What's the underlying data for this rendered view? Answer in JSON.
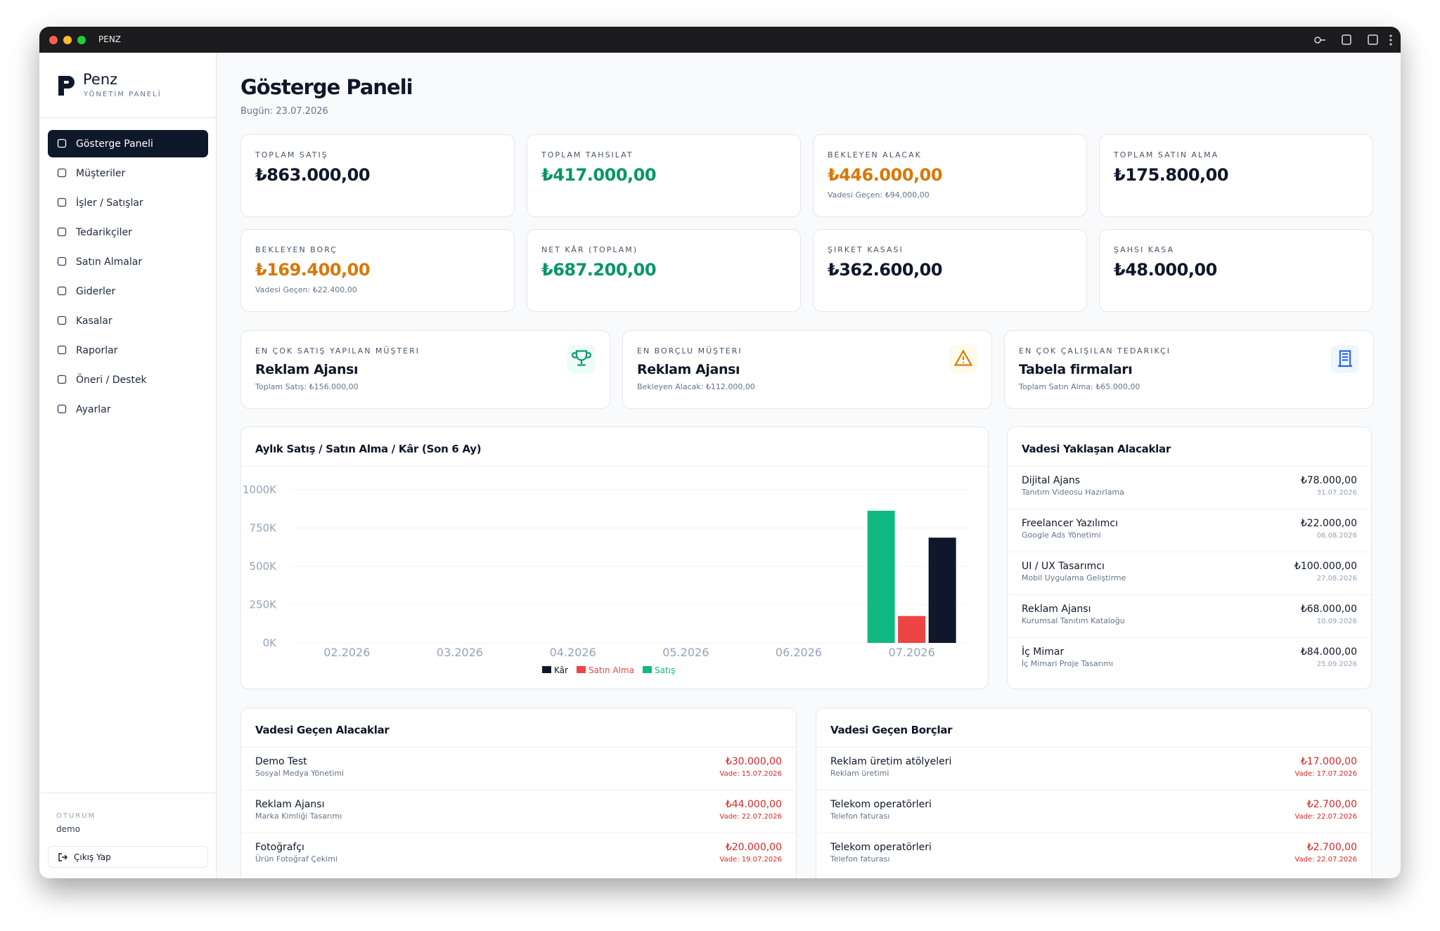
{
  "window": {
    "title": "PENZ"
  },
  "sidebar": {
    "brand": "Penz",
    "brand_sub": "YÖNETİM PANELİ",
    "nav": [
      "Gösterge Paneli",
      "Müşteriler",
      "İşler / Satışlar",
      "Tedarikçiler",
      "Satın Almalar",
      "Giderler",
      "Kasalar",
      "Raporlar",
      "Öneri / Destek",
      "Ayarlar"
    ],
    "session_label": "OTURUM",
    "user": "demo",
    "logout": "Çıkış Yap"
  },
  "header": {
    "title": "Gösterge Paneli",
    "date": "Bugün: 23.07.2026"
  },
  "stats": [
    {
      "label": "TOPLAM SATIŞ",
      "value": "₺863.000,00",
      "color": "#0f172a"
    },
    {
      "label": "TOPLAM TAHSILAT",
      "value": "₺417.000,00",
      "color": "#059669"
    },
    {
      "label": "BEKLEYEN ALACAK",
      "value": "₺446.000,00",
      "color": "#d97706",
      "note": "Vadesi Geçen: ₺94.000,00"
    },
    {
      "label": "TOPLAM SATIN ALMA",
      "value": "₺175.800,00",
      "color": "#0f172a"
    },
    {
      "label": "BEKLEYEN BORÇ",
      "value": "₺169.400,00",
      "color": "#d97706",
      "note": "Vadesi Geçen: ₺22.400,00"
    },
    {
      "label": "NET KÂR (TOPLAM)",
      "value": "₺687.200,00",
      "color": "#059669"
    },
    {
      "label": "ŞIRKET KASASI",
      "value": "₺362.600,00",
      "color": "#0f172a"
    },
    {
      "label": "ŞAHSI KASA",
      "value": "₺48.000,00",
      "color": "#0f172a"
    }
  ],
  "highlights": [
    {
      "label": "EN ÇOK SATIŞ YAPILAN MÜŞTERI",
      "name": "Reklam Ajansı",
      "note": "Toplam Satış: ₺156.000,00"
    },
    {
      "label": "EN BORÇLU MÜŞTERI",
      "name": "Reklam Ajansı",
      "note": "Bekleyen Alacak: ₺112.000,00"
    },
    {
      "label": "EN ÇOK ÇALIŞILAN TEDARIKÇI",
      "name": "Tabela firmaları",
      "note": "Toplam Satın Alma: ₺65.000,00"
    }
  ],
  "chart_data": {
    "type": "bar",
    "title": "Aylık Satış / Satın Alma / Kâr (Son 6 Ay)",
    "categories": [
      "02.2026",
      "03.2026",
      "04.2026",
      "05.2026",
      "06.2026",
      "07.2026"
    ],
    "series": [
      {
        "name": "Kâr",
        "color": "#0f172a",
        "values": [
          0,
          0,
          0,
          0,
          0,
          687200
        ]
      },
      {
        "name": "Satın Alma",
        "color": "#ef4444",
        "values": [
          0,
          0,
          0,
          0,
          0,
          175800
        ]
      },
      {
        "name": "Satış",
        "color": "#10b981",
        "values": [
          0,
          0,
          0,
          0,
          0,
          863000
        ]
      }
    ],
    "ylim": [
      0,
      1000000
    ],
    "yticks": [
      {
        "value": 0,
        "label": "0K"
      },
      {
        "value": 250000,
        "label": "250K"
      },
      {
        "value": 500000,
        "label": "500K"
      },
      {
        "value": 750000,
        "label": "750K"
      },
      {
        "value": 1000000,
        "label": "1000K"
      }
    ],
    "grid": true,
    "legend": "bottom"
  },
  "upcoming": {
    "title": "Vadesi Yaklaşan Alacaklar",
    "rows": [
      {
        "name": "Dijital Ajans",
        "sub": "Tanıtım Videosu Hazırlama",
        "amount": "₺78.000,00",
        "date": "31.07.2026"
      },
      {
        "name": "Freelancer Yazılımcı",
        "sub": "Google Ads Yönetimi",
        "amount": "₺22.000,00",
        "date": "06.08.2026"
      },
      {
        "name": "UI / UX Tasarımcı",
        "sub": "Mobil Uygulama Geliştirme",
        "amount": "₺100.000,00",
        "date": "27.08.2026"
      },
      {
        "name": "Reklam Ajansı",
        "sub": "Kurumsal Tanıtım Kataloğu",
        "amount": "₺68.000,00",
        "date": "10.09.2026"
      },
      {
        "name": "İç Mimar",
        "sub": "İç Mimari Proje Tasarımı",
        "amount": "₺84.000,00",
        "date": "25.09.2026"
      }
    ]
  },
  "overdue_receivables": {
    "title": "Vadesi Geçen Alacaklar",
    "rows": [
      {
        "name": "Demo Test",
        "sub": "Sosyal Medya Yönetimi",
        "amount": "₺30.000,00",
        "date": "Vade: 15.07.2026"
      },
      {
        "name": "Reklam Ajansı",
        "sub": "Marka Kimliği Tasarımı",
        "amount": "₺44.000,00",
        "date": "Vade: 22.07.2026"
      },
      {
        "name": "Fotoğrafçı",
        "sub": "Ürün Fotoğraf Çekimi",
        "amount": "₺20.000,00",
        "date": "Vade: 19.07.2026"
      }
    ]
  },
  "overdue_payables": {
    "title": "Vadesi Geçen Borçlar",
    "rows": [
      {
        "name": "Reklam üretim atölyeleri",
        "sub": "Reklam üretimi",
        "amount": "₺17.000,00",
        "date": "Vade: 17.07.2026"
      },
      {
        "name": "Telekom operatörleri",
        "sub": "Telefon faturası",
        "amount": "₺2.700,00",
        "date": "Vade: 22.07.2026"
      },
      {
        "name": "Telekom operatörleri",
        "sub": "Telefon faturası",
        "amount": "₺2.700,00",
        "date": "Vade: 22.07.2026"
      }
    ]
  }
}
